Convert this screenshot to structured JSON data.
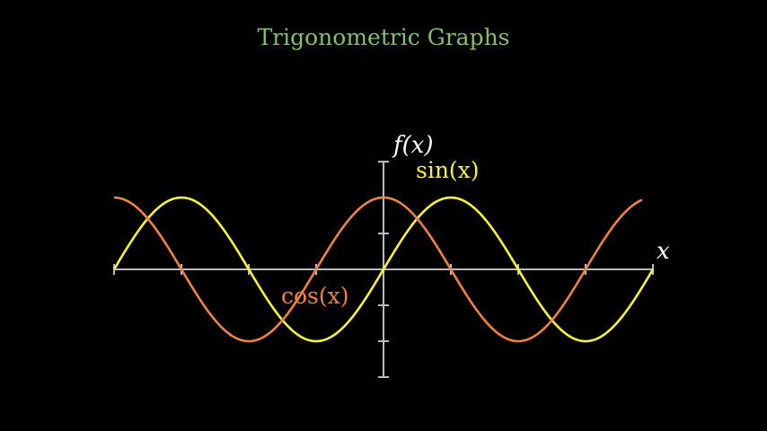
{
  "chart_data": {
    "type": "line",
    "title": "Trigonometric Graphs",
    "xlabel": "x",
    "ylabel": "f(x)",
    "xlim": [
      -6.2832,
      6.2832
    ],
    "ylim": [
      -1.5,
      1.5
    ],
    "x_tick_step": 1.5708,
    "y_tick_step": 0.5,
    "grid": false,
    "tick_labels_shown": false,
    "series": [
      {
        "name": "sin(x)",
        "function": "sin",
        "x_range": [
          -6.2832,
          6.2832
        ],
        "color": "#F7F531"
      },
      {
        "name": "cos(x)",
        "function": "cos",
        "x_range": [
          -6.2832,
          6.03
        ],
        "color": "#EE8240"
      }
    ]
  },
  "colors": {
    "background": "#000000",
    "title": "#83C167",
    "axes": "#BBBBBB",
    "axis_labels": "#FFFFFF"
  }
}
